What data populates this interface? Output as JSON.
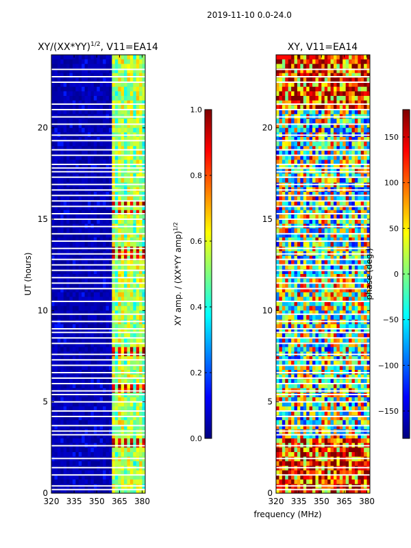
{
  "suptitle": "2019-11-10 0.0-24.0",
  "xlabel": "frequency (MHz)",
  "colors": {
    "background": "#00007f",
    "jet": [
      "#00007f",
      "#0000ff",
      "#007fff",
      "#00ffff",
      "#7fff7f",
      "#ffff00",
      "#ff7f00",
      "#ff0000",
      "#7f0000"
    ],
    "gap": "#ffffff"
  },
  "chart_data": [
    {
      "type": "heatmap",
      "title_main": "XY/(XX*YY)",
      "title_sup": "1/2",
      "title_rest": ", V11=EA14",
      "xlabel": "",
      "ylabel": "UT (hours)",
      "xlim": [
        320,
        382
      ],
      "ylim": [
        0,
        24
      ],
      "xticks": [
        "320",
        "335",
        "350",
        "365",
        "380"
      ],
      "xtick_values": [
        320,
        335,
        350,
        365,
        380
      ],
      "yticks": [
        "0",
        "5",
        "10",
        "15",
        "20"
      ],
      "ytick_values": [
        0,
        5,
        10,
        15,
        20
      ],
      "colorbar": {
        "label_main": "XY amp. / (XX*YY amp)",
        "label_sup": "1/2",
        "range": [
          0.0,
          1.0
        ],
        "ticks": [
          "0.0",
          "0.2",
          "0.4",
          "0.6",
          "0.8",
          "1.0"
        ],
        "tick_values": [
          0.0,
          0.2,
          0.4,
          0.6,
          0.8,
          1.0
        ]
      },
      "active_band_mhz": [
        361,
        382
      ],
      "hot_rows_hours": [
        2.8,
        5.8,
        7.8,
        12.9,
        13.2,
        15.4,
        15.9
      ],
      "flagged_rows_hours": [
        0.2,
        0.4,
        1.0,
        1.4,
        1.9,
        2.6,
        3.2,
        3.4,
        3.7,
        4.2,
        4.5,
        5.0,
        5.4,
        5.6,
        6.0,
        6.3,
        6.6,
        7.0,
        7.3,
        7.6,
        8.2,
        8.5,
        8.8,
        9.0,
        9.4,
        9.8,
        10.5,
        11.2,
        11.5,
        11.8,
        12.2,
        12.5,
        12.8,
        13.1,
        13.4,
        13.8,
        14.2,
        14.6,
        15.0,
        15.3,
        15.7,
        16.0,
        16.3,
        16.6,
        16.9,
        17.3,
        17.6,
        17.8,
        18.0,
        18.5,
        18.8,
        19.3,
        19.6,
        20.2,
        20.6,
        21.0,
        21.3,
        22.5,
        22.8,
        23.2
      ]
    },
    {
      "type": "heatmap",
      "title_main": "XY, V11=EA14",
      "xlabel": "frequency (MHz)",
      "ylabel": "",
      "xlim": [
        320,
        382
      ],
      "ylim": [
        0,
        24
      ],
      "xticks": [
        "320",
        "335",
        "350",
        "365",
        "380"
      ],
      "xtick_values": [
        320,
        335,
        350,
        365,
        380
      ],
      "yticks": [
        "0",
        "5",
        "10",
        "15",
        "20"
      ],
      "ytick_values": [
        0,
        5,
        10,
        15,
        20
      ],
      "colorbar": {
        "label": "phase (deg.)",
        "range": [
          -180,
          180
        ],
        "ticks": [
          "−150",
          "−100",
          "−50",
          "0",
          "50",
          "100",
          "150"
        ],
        "tick_values": [
          -150,
          -100,
          -50,
          0,
          50,
          100,
          150
        ]
      },
      "flagged_rows_hours": [
        0.2,
        0.4,
        1.0,
        1.4,
        1.9,
        2.6,
        3.2,
        3.4,
        3.7,
        4.2,
        4.5,
        5.0,
        5.4,
        5.6,
        6.0,
        6.3,
        6.6,
        7.0,
        7.3,
        7.6,
        8.2,
        8.5,
        8.8,
        9.0,
        9.4,
        9.8,
        10.5,
        11.2,
        11.5,
        11.8,
        12.2,
        12.5,
        12.8,
        13.1,
        13.4,
        13.8,
        14.2,
        14.6,
        15.0,
        15.3,
        15.7,
        16.0,
        16.3,
        16.6,
        16.9,
        17.3,
        17.6,
        17.8,
        18.0,
        18.5,
        18.8,
        19.3,
        19.6,
        20.2,
        20.6,
        21.0,
        21.3,
        22.5,
        22.8,
        23.2
      ]
    }
  ]
}
